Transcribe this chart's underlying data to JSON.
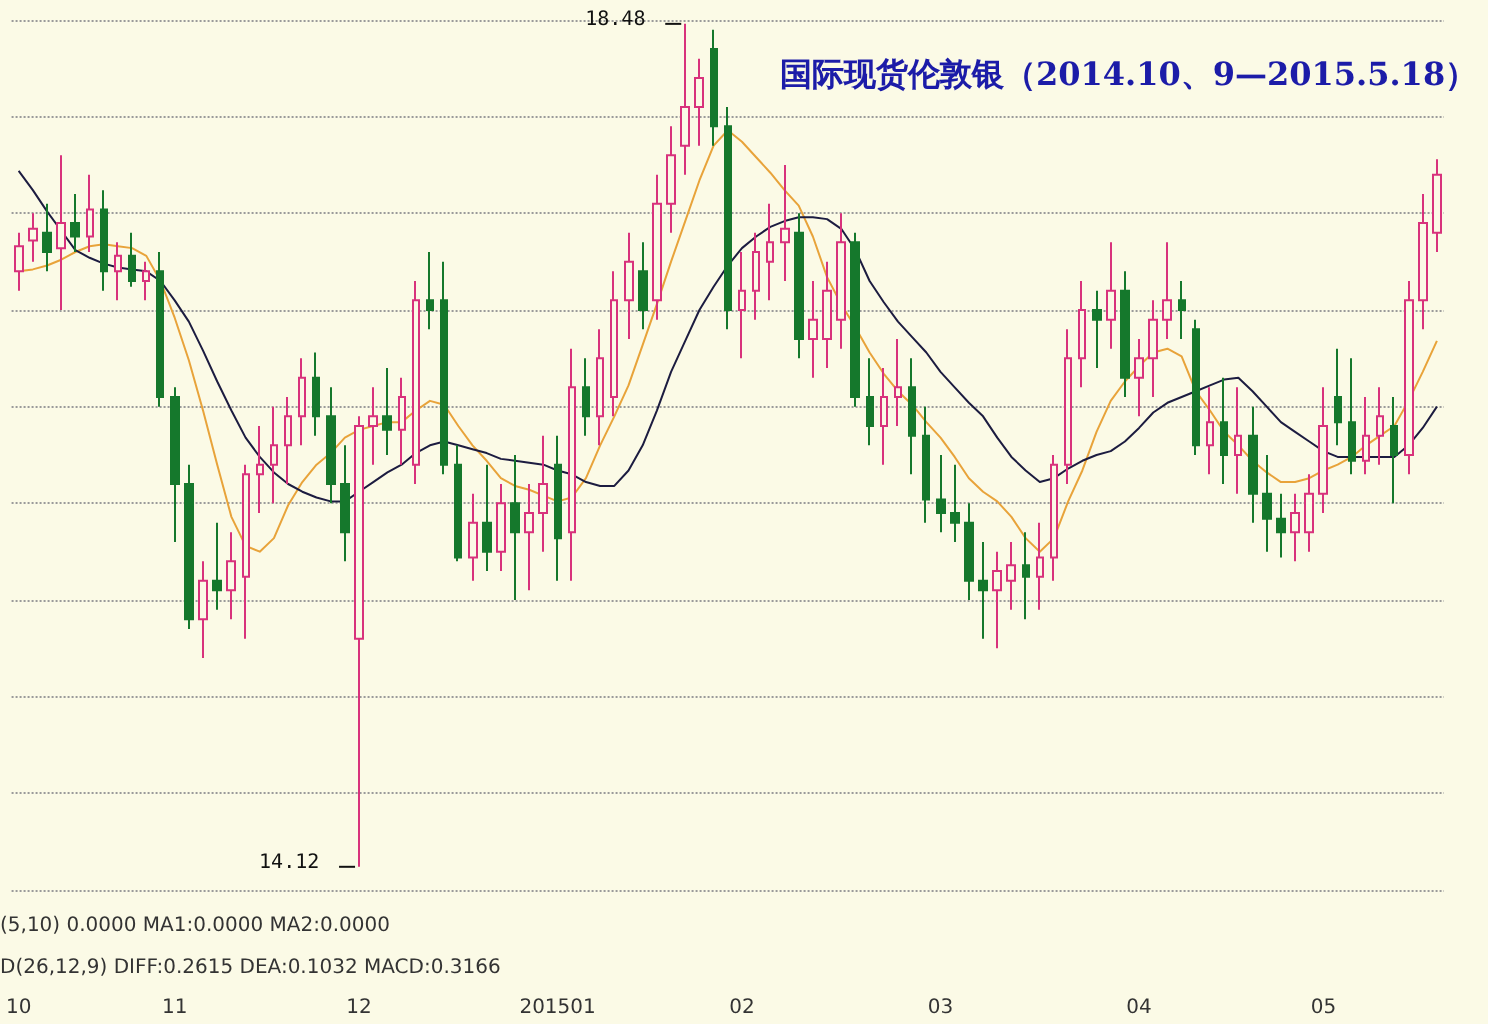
{
  "chart_data": {
    "type": "candlestick",
    "title": "国际现货伦敦银（2014.10、9—2015.5.18）",
    "categories": [
      "10",
      null,
      null,
      null,
      null,
      null,
      null,
      null,
      null,
      null,
      null,
      "11",
      null,
      null,
      null,
      null,
      null,
      null,
      null,
      null,
      null,
      null,
      null,
      null,
      "12",
      null,
      null,
      null,
      null,
      null,
      null,
      null,
      null,
      null,
      null,
      null,
      null,
      null,
      "201501",
      null,
      null,
      null,
      null,
      null,
      null,
      null,
      null,
      null,
      null,
      null,
      null,
      "02",
      null,
      null,
      null,
      null,
      null,
      null,
      null,
      null,
      null,
      null,
      null,
      null,
      null,
      "03",
      null,
      null,
      null,
      null,
      null,
      null,
      null,
      null,
      null,
      null,
      null,
      null,
      null,
      "04",
      null,
      null,
      null,
      null,
      null,
      null,
      null,
      null,
      null,
      null,
      null,
      null,
      "05",
      null,
      null,
      null,
      null,
      null,
      null,
      null,
      null
    ],
    "ohlc": [
      [
        17.2,
        17.4,
        17.1,
        17.33
      ],
      [
        17.36,
        17.5,
        17.25,
        17.42
      ],
      [
        17.4,
        17.55,
        17.2,
        17.3
      ],
      [
        17.32,
        17.8,
        17.0,
        17.45
      ],
      [
        17.45,
        17.6,
        17.3,
        17.38
      ],
      [
        17.38,
        17.7,
        17.3,
        17.52
      ],
      [
        17.52,
        17.62,
        17.1,
        17.2
      ],
      [
        17.2,
        17.35,
        17.05,
        17.28
      ],
      [
        17.28,
        17.4,
        17.12,
        17.15
      ],
      [
        17.15,
        17.25,
        17.05,
        17.2
      ],
      [
        17.2,
        17.3,
        16.5,
        16.55
      ],
      [
        16.55,
        16.6,
        15.8,
        16.1
      ],
      [
        16.1,
        16.2,
        15.35,
        15.4
      ],
      [
        15.4,
        15.7,
        15.2,
        15.6
      ],
      [
        15.6,
        15.9,
        15.45,
        15.55
      ],
      [
        15.55,
        15.85,
        15.4,
        15.7
      ],
      [
        15.62,
        16.2,
        15.3,
        16.15
      ],
      [
        16.15,
        16.4,
        15.95,
        16.2
      ],
      [
        16.2,
        16.5,
        16.0,
        16.3
      ],
      [
        16.3,
        16.55,
        16.1,
        16.45
      ],
      [
        16.45,
        16.75,
        16.3,
        16.65
      ],
      [
        16.65,
        16.78,
        16.35,
        16.45
      ],
      [
        16.45,
        16.6,
        16.0,
        16.1
      ],
      [
        16.1,
        16.3,
        15.7,
        15.85
      ],
      [
        15.3,
        16.45,
        14.12,
        16.4
      ],
      [
        16.4,
        16.6,
        16.2,
        16.45
      ],
      [
        16.45,
        16.7,
        16.25,
        16.38
      ],
      [
        16.38,
        16.65,
        16.2,
        16.55
      ],
      [
        16.2,
        17.15,
        16.1,
        17.05
      ],
      [
        17.05,
        17.3,
        16.9,
        17.0
      ],
      [
        17.05,
        17.25,
        16.15,
        16.2
      ],
      [
        16.2,
        16.3,
        15.7,
        15.72
      ],
      [
        15.72,
        16.05,
        15.6,
        15.9
      ],
      [
        15.9,
        16.2,
        15.65,
        15.75
      ],
      [
        15.75,
        16.1,
        15.65,
        16.0
      ],
      [
        16.0,
        16.25,
        15.5,
        15.85
      ],
      [
        15.85,
        16.1,
        15.55,
        15.95
      ],
      [
        15.95,
        16.35,
        15.75,
        16.1
      ],
      [
        16.2,
        16.35,
        15.6,
        15.82
      ],
      [
        15.85,
        16.8,
        15.6,
        16.6
      ],
      [
        16.6,
        16.75,
        16.35,
        16.45
      ],
      [
        16.45,
        16.9,
        16.3,
        16.75
      ],
      [
        16.55,
        17.2,
        16.45,
        17.05
      ],
      [
        17.05,
        17.4,
        16.85,
        17.25
      ],
      [
        17.2,
        17.35,
        16.9,
        17.0
      ],
      [
        17.05,
        17.7,
        16.95,
        17.55
      ],
      [
        17.55,
        17.95,
        17.4,
        17.8
      ],
      [
        17.85,
        18.48,
        17.7,
        18.05
      ],
      [
        18.05,
        18.3,
        17.85,
        18.2
      ],
      [
        18.35,
        18.45,
        17.85,
        17.95
      ],
      [
        17.95,
        18.05,
        16.9,
        17.0
      ],
      [
        17.0,
        17.3,
        16.75,
        17.1
      ],
      [
        17.1,
        17.4,
        16.95,
        17.3
      ],
      [
        17.25,
        17.55,
        17.05,
        17.35
      ],
      [
        17.35,
        17.75,
        17.15,
        17.42
      ],
      [
        17.4,
        17.5,
        16.75,
        16.85
      ],
      [
        16.85,
        17.15,
        16.65,
        16.95
      ],
      [
        16.85,
        17.25,
        16.7,
        17.1
      ],
      [
        16.95,
        17.5,
        16.8,
        17.35
      ],
      [
        17.35,
        17.4,
        16.5,
        16.55
      ],
      [
        16.55,
        16.75,
        16.3,
        16.4
      ],
      [
        16.4,
        16.7,
        16.2,
        16.55
      ],
      [
        16.55,
        16.85,
        16.4,
        16.6
      ],
      [
        16.6,
        16.75,
        16.15,
        16.35
      ],
      [
        16.35,
        16.5,
        15.9,
        16.02
      ],
      [
        16.02,
        16.25,
        15.85,
        15.95
      ],
      [
        15.95,
        16.2,
        15.8,
        15.9
      ],
      [
        15.9,
        16.0,
        15.5,
        15.6
      ],
      [
        15.6,
        15.8,
        15.3,
        15.55
      ],
      [
        15.55,
        15.75,
        15.25,
        15.65
      ],
      [
        15.6,
        15.8,
        15.45,
        15.68
      ],
      [
        15.68,
        15.85,
        15.4,
        15.62
      ],
      [
        15.62,
        15.9,
        15.45,
        15.72
      ],
      [
        15.72,
        16.25,
        15.6,
        16.2
      ],
      [
        16.2,
        16.9,
        16.1,
        16.75
      ],
      [
        16.75,
        17.15,
        16.6,
        17.0
      ],
      [
        17.0,
        17.1,
        16.7,
        16.95
      ],
      [
        16.95,
        17.35,
        16.8,
        17.1
      ],
      [
        17.1,
        17.2,
        16.55,
        16.65
      ],
      [
        16.65,
        16.85,
        16.45,
        16.75
      ],
      [
        16.75,
        17.05,
        16.55,
        16.95
      ],
      [
        16.95,
        17.35,
        16.85,
        17.05
      ],
      [
        17.05,
        17.15,
        16.85,
        17.0
      ],
      [
        16.9,
        16.95,
        16.25,
        16.3
      ],
      [
        16.3,
        16.6,
        16.15,
        16.42
      ],
      [
        16.42,
        16.65,
        16.1,
        16.25
      ],
      [
        16.25,
        16.6,
        16.05,
        16.35
      ],
      [
        16.35,
        16.5,
        15.9,
        16.05
      ],
      [
        16.05,
        16.25,
        15.75,
        15.92
      ],
      [
        15.92,
        16.05,
        15.72,
        15.85
      ],
      [
        15.85,
        16.05,
        15.7,
        15.95
      ],
      [
        15.85,
        16.15,
        15.75,
        16.05
      ],
      [
        16.05,
        16.6,
        15.95,
        16.4
      ],
      [
        16.55,
        16.8,
        16.3,
        16.42
      ],
      [
        16.42,
        16.75,
        16.15,
        16.22
      ],
      [
        16.22,
        16.55,
        16.15,
        16.35
      ],
      [
        16.35,
        16.6,
        16.2,
        16.45
      ],
      [
        16.4,
        16.55,
        16.0,
        16.25
      ],
      [
        16.25,
        17.15,
        16.15,
        17.05
      ],
      [
        17.05,
        17.6,
        16.9,
        17.45
      ],
      [
        17.4,
        17.78,
        17.3,
        17.7
      ]
    ],
    "series": [
      {
        "type": "line",
        "color": "#e8a33a",
        "values": [
          17.2,
          17.21,
          17.23,
          17.26,
          17.3,
          17.33,
          17.34,
          17.33,
          17.32,
          17.28,
          17.15,
          16.96,
          16.74,
          16.48,
          16.2,
          15.93,
          15.78,
          15.75,
          15.82,
          15.99,
          16.11,
          16.2,
          16.26,
          16.34,
          16.38,
          16.4,
          16.42,
          16.42,
          16.48,
          16.53,
          16.51,
          16.4,
          16.3,
          16.22,
          16.13,
          16.09,
          16.07,
          16.04,
          16.01,
          16.03,
          16.13,
          16.3,
          16.45,
          16.61,
          16.82,
          17.03,
          17.25,
          17.46,
          17.67,
          17.85,
          17.93,
          17.87,
          17.79,
          17.71,
          17.62,
          17.54,
          17.38,
          17.17,
          17.03,
          16.91,
          16.78,
          16.67,
          16.58,
          16.51,
          16.42,
          16.34,
          16.24,
          16.13,
          16.06,
          16.01,
          15.93,
          15.82,
          15.75,
          15.82,
          16.01,
          16.17,
          16.37,
          16.53,
          16.63,
          16.71,
          16.78,
          16.8,
          16.76,
          16.58,
          16.48,
          16.37,
          16.3,
          16.22,
          16.16,
          16.11,
          16.11,
          16.13,
          16.17,
          16.2,
          16.24,
          16.3,
          16.35,
          16.4,
          16.53,
          16.68,
          16.84
        ]
      },
      {
        "type": "line",
        "color": "#1c1c40",
        "values": [
          17.72,
          17.62,
          17.51,
          17.41,
          17.31,
          17.27,
          17.24,
          17.22,
          17.21,
          17.2,
          17.15,
          17.05,
          16.94,
          16.79,
          16.63,
          16.48,
          16.34,
          16.24,
          16.16,
          16.1,
          16.06,
          16.03,
          16.01,
          16.01,
          16.06,
          16.11,
          16.16,
          16.2,
          16.26,
          16.3,
          16.32,
          16.3,
          16.28,
          16.26,
          16.23,
          16.22,
          16.21,
          16.2,
          16.17,
          16.15,
          16.11,
          16.09,
          16.09,
          16.17,
          16.3,
          16.48,
          16.68,
          16.84,
          17.0,
          17.12,
          17.23,
          17.32,
          17.38,
          17.43,
          17.46,
          17.48,
          17.48,
          17.47,
          17.42,
          17.31,
          17.15,
          17.04,
          16.94,
          16.86,
          16.78,
          16.68,
          16.6,
          16.52,
          16.45,
          16.34,
          16.24,
          16.17,
          16.11,
          16.13,
          16.18,
          16.22,
          16.25,
          16.27,
          16.32,
          16.39,
          16.47,
          16.52,
          16.55,
          16.58,
          16.61,
          16.64,
          16.65,
          16.58,
          16.5,
          16.42,
          16.37,
          16.32,
          16.27,
          16.24,
          16.24,
          16.24,
          16.24,
          16.24,
          16.3,
          16.39,
          16.5
        ]
      }
    ],
    "ylim": [
      14.0,
      18.5
    ],
    "yticks": [
      {
        "value": 14.0,
        "label": null
      },
      {
        "value": 14.5,
        "label": null
      },
      {
        "value": 15.0,
        "label": null
      },
      {
        "value": 15.5,
        "label": null
      },
      {
        "value": 16.0,
        "label": null
      },
      {
        "value": 16.5,
        "label": null
      },
      {
        "value": 17.0,
        "label": null
      },
      {
        "value": 17.5,
        "label": null
      },
      {
        "value": 18.0,
        "label": null
      },
      {
        "value": 18.5,
        "label": null
      }
    ],
    "tick_labels": "x",
    "grid": "y",
    "marker": "none",
    "annotations": [
      "18.48",
      "14.12",
      "(5,10) 0.0000 MA1:0.0000 MA2:0.0000",
      "D(26,12,9) DIFF:0.2615 DEA:0.1032 MACD:0.3166"
    ]
  }
}
